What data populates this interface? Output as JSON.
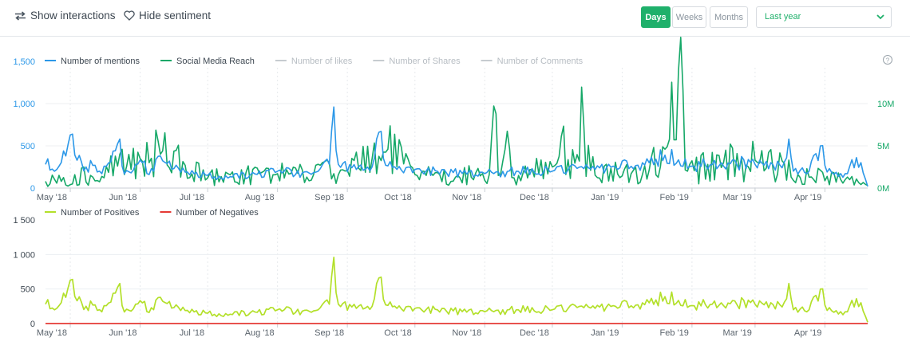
{
  "toolbar": {
    "show_interactions": "Show interactions",
    "hide_sentiment": "Hide sentiment",
    "segments": [
      "Days",
      "Weeks",
      "Months"
    ],
    "active_segment": "Days",
    "period": "Last year"
  },
  "colors": {
    "mentions": "#2c98e8",
    "reach": "#16a868",
    "positives": "#b3e02a",
    "negatives": "#e53935",
    "inactive": "#c6cbd0",
    "left_axis": "#2c98e8",
    "right_axis": "#16a868",
    "accent": "#1fb06b"
  },
  "chart_data": [
    {
      "type": "line",
      "legend": [
        {
          "name": "Number of mentions",
          "active": true
        },
        {
          "name": "Social Media Reach",
          "active": true
        },
        {
          "name": "Number of likes",
          "active": false
        },
        {
          "name": "Number of Shares",
          "active": false
        },
        {
          "name": "Number of Comments",
          "active": false
        }
      ],
      "help_icon": "?",
      "x_ticks": [
        "May '18",
        "Jun '18",
        "Jul '18",
        "Aug '18",
        "Sep '18",
        "Oct '18",
        "Nov '18",
        "Dec '18",
        "Jan '19",
        "Feb '19",
        "Mar '19",
        "Apr '19"
      ],
      "y_left_ticks": [
        "0",
        "500",
        "1,000",
        "1,500"
      ],
      "y_left_range": [
        0,
        1500
      ],
      "y_right_ticks": [
        "0M",
        "5M",
        "10M"
      ],
      "y_right_range": [
        0,
        15000000
      ],
      "grid": true,
      "x_start": "2018-04-20",
      "x_end": "2019-04-20",
      "series": [
        {
          "name": "Number of mentions",
          "axis": "left",
          "anchors": [
            [
              "2018-04-20",
              280
            ],
            [
              "2018-04-25",
              220
            ],
            [
              "2018-04-29",
              380
            ],
            [
              "2018-05-01",
              630
            ],
            [
              "2018-05-04",
              330
            ],
            [
              "2018-05-08",
              250
            ],
            [
              "2018-05-12",
              270
            ],
            [
              "2018-05-15",
              170
            ],
            [
              "2018-05-19",
              310
            ],
            [
              "2018-05-23",
              580
            ],
            [
              "2018-05-24",
              260
            ],
            [
              "2018-05-28",
              180
            ],
            [
              "2018-06-02",
              300
            ],
            [
              "2018-06-05",
              160
            ],
            [
              "2018-06-10",
              380
            ],
            [
              "2018-06-16",
              230
            ],
            [
              "2018-06-22",
              190
            ],
            [
              "2018-07-01",
              150
            ],
            [
              "2018-07-10",
              120
            ],
            [
              "2018-07-20",
              160
            ],
            [
              "2018-08-01",
              200
            ],
            [
              "2018-08-12",
              180
            ],
            [
              "2018-08-20",
              230
            ],
            [
              "2018-08-24",
              280
            ],
            [
              "2018-08-26",
              960
            ],
            [
              "2018-08-28",
              280
            ],
            [
              "2018-09-05",
              220
            ],
            [
              "2018-09-12",
              250
            ],
            [
              "2018-09-15",
              660
            ],
            [
              "2018-09-18",
              270
            ],
            [
              "2018-10-01",
              220
            ],
            [
              "2018-10-15",
              180
            ],
            [
              "2018-11-01",
              170
            ],
            [
              "2018-11-15",
              200
            ],
            [
              "2018-12-01",
              200
            ],
            [
              "2018-12-15",
              230
            ],
            [
              "2018-12-29",
              250
            ],
            [
              "2019-01-10",
              300
            ],
            [
              "2019-01-20",
              390
            ],
            [
              "2019-02-01",
              260
            ],
            [
              "2019-02-14",
              300
            ],
            [
              "2019-03-01",
              280
            ],
            [
              "2019-03-13",
              240
            ],
            [
              "2019-03-16",
              580
            ],
            [
              "2019-03-18",
              200
            ],
            [
              "2019-03-25",
              200
            ],
            [
              "2019-03-30",
              500
            ],
            [
              "2019-04-02",
              190
            ],
            [
              "2019-04-10",
              170
            ],
            [
              "2019-04-15",
              360
            ],
            [
              "2019-04-18",
              180
            ],
            [
              "2019-04-20",
              20
            ]
          ]
        },
        {
          "name": "Social Media Reach",
          "axis": "right",
          "anchors": [
            [
              "2018-04-20",
              800000
            ],
            [
              "2018-05-10",
              1500000
            ],
            [
              "2018-06-01",
              3500000
            ],
            [
              "2018-06-10",
              4000000
            ],
            [
              "2018-07-01",
              1200000
            ],
            [
              "2018-08-01",
              1700000
            ],
            [
              "2018-09-01",
              2100000
            ],
            [
              "2018-09-19",
              4600000
            ],
            [
              "2018-10-01",
              1600000
            ],
            [
              "2018-10-20",
              1500000
            ],
            [
              "2018-11-03",
              1600000
            ],
            [
              "2018-11-06",
              8800000
            ],
            [
              "2018-11-08",
              1600000
            ],
            [
              "2018-11-12",
              4700000
            ],
            [
              "2018-11-14",
              1200000
            ],
            [
              "2018-12-01",
              2500000
            ],
            [
              "2018-12-15",
              7300000
            ],
            [
              "2018-12-18",
              2100000
            ],
            [
              "2019-01-10",
              1600000
            ],
            [
              "2019-01-20",
              4600000
            ],
            [
              "2019-01-28",
              11600000
            ],
            [
              "2019-01-30",
              2000000
            ],
            [
              "2019-02-15",
              3000000
            ],
            [
              "2019-03-01",
              3300000
            ],
            [
              "2019-03-20",
              1600000
            ],
            [
              "2019-04-10",
              1000000
            ],
            [
              "2019-04-20",
              300000
            ]
          ]
        }
      ]
    },
    {
      "type": "line",
      "legend": [
        {
          "name": "Number of Positives",
          "active": true
        },
        {
          "name": "Number of Negatives",
          "active": true
        }
      ],
      "x_ticks": [
        "May '18",
        "Jun '18",
        "Jul '18",
        "Aug '18",
        "Sep '18",
        "Oct '18",
        "Nov '18",
        "Dec '18",
        "Jan '19",
        "Feb '19",
        "Mar '19",
        "Apr '19"
      ],
      "y_ticks": [
        "0",
        "500",
        "1 000",
        "1 500"
      ],
      "y_range": [
        0,
        1500
      ],
      "grid": true,
      "series": [
        {
          "name": "Number of Positives",
          "anchors": [
            [
              "2018-04-20",
              280
            ],
            [
              "2018-04-25",
              220
            ],
            [
              "2018-04-29",
              380
            ],
            [
              "2018-05-01",
              630
            ],
            [
              "2018-05-04",
              330
            ],
            [
              "2018-05-08",
              250
            ],
            [
              "2018-05-12",
              270
            ],
            [
              "2018-05-15",
              170
            ],
            [
              "2018-05-19",
              310
            ],
            [
              "2018-05-23",
              580
            ],
            [
              "2018-05-24",
              260
            ],
            [
              "2018-05-28",
              180
            ],
            [
              "2018-06-02",
              300
            ],
            [
              "2018-06-05",
              160
            ],
            [
              "2018-06-10",
              380
            ],
            [
              "2018-06-16",
              230
            ],
            [
              "2018-06-22",
              190
            ],
            [
              "2018-07-01",
              150
            ],
            [
              "2018-07-10",
              120
            ],
            [
              "2018-07-20",
              160
            ],
            [
              "2018-08-01",
              200
            ],
            [
              "2018-08-12",
              180
            ],
            [
              "2018-08-20",
              230
            ],
            [
              "2018-08-24",
              280
            ],
            [
              "2018-08-26",
              960
            ],
            [
              "2018-08-28",
              280
            ],
            [
              "2018-09-05",
              220
            ],
            [
              "2018-09-12",
              250
            ],
            [
              "2018-09-15",
              660
            ],
            [
              "2018-09-18",
              270
            ],
            [
              "2018-10-01",
              220
            ],
            [
              "2018-10-15",
              180
            ],
            [
              "2018-11-01",
              170
            ],
            [
              "2018-11-15",
              200
            ],
            [
              "2018-12-01",
              200
            ],
            [
              "2018-12-15",
              230
            ],
            [
              "2018-12-29",
              250
            ],
            [
              "2019-01-10",
              300
            ],
            [
              "2019-01-20",
              390
            ],
            [
              "2019-02-01",
              260
            ],
            [
              "2019-02-14",
              300
            ],
            [
              "2019-03-01",
              280
            ],
            [
              "2019-03-13",
              240
            ],
            [
              "2019-03-16",
              580
            ],
            [
              "2019-03-18",
              200
            ],
            [
              "2019-03-25",
              200
            ],
            [
              "2019-03-30",
              500
            ],
            [
              "2019-04-02",
              190
            ],
            [
              "2019-04-10",
              170
            ],
            [
              "2019-04-15",
              360
            ],
            [
              "2019-04-18",
              180
            ],
            [
              "2019-04-20",
              20
            ]
          ]
        },
        {
          "name": "Number of Negatives",
          "anchors": [
            [
              "2018-04-20",
              0
            ],
            [
              "2019-04-20",
              0
            ]
          ]
        }
      ]
    }
  ]
}
